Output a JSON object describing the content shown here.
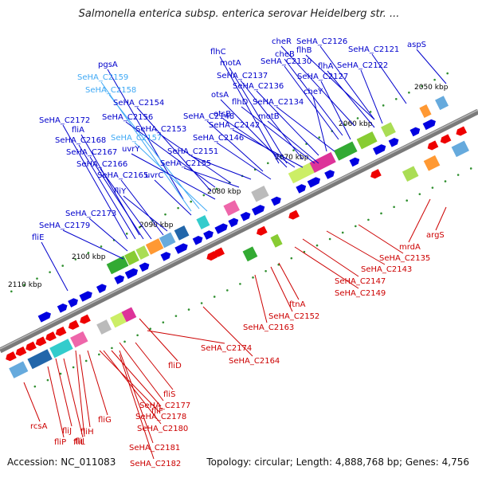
{
  "title": "Salmonella enterica subsp. enterica serovar Heidelberg str. ...",
  "footer": {
    "accession": "Accession: NC_011083",
    "stats": "Topology: circular; Length: 4,888,768 bp; Genes: 4,756"
  },
  "colors": {
    "forward_label": "#0000cc",
    "highlight_label": "#3fa9f5",
    "reverse_label": "#cc0000",
    "backbone": "#7a7a7a",
    "forward_gene": "#0000e0",
    "reverse_gene": "#ee0000",
    "rna": "#2f8f2f"
  },
  "ticks": [
    "2050 kbp",
    "2060 kbp",
    "2070 kbp",
    "2080 kbp",
    "2090 kbp",
    "2100 kbp",
    "2110 kbp"
  ],
  "labels_forward": [
    "flhB",
    "cheR",
    "SeHA_C2126",
    "SeHA_C2121",
    "aspS",
    "cheB",
    "SeHA_C2130",
    "flhA",
    "SeHA_C2122",
    "flhC",
    "motA",
    "pgsA",
    "SeHA_C2127",
    "SeHA_C2159",
    "SeHA_C2137",
    "SeHA_C2158",
    "SeHA_C2136",
    "cheY",
    "otsA",
    "SeHA_C2154",
    "flhD",
    "SeHA_C2134",
    "SeHA_C2156",
    "SeHA_C2148",
    "otsB",
    "motB",
    "SeHA_C2172",
    "SeHA_C2153",
    "SeHA_C2142",
    "fliA",
    "SeHA_C2157",
    "SeHA_C2146",
    "SeHA_C2168",
    "uvrY",
    "SeHA_C2167",
    "SeHA_C2151",
    "SeHA_C2166",
    "SeHA_C2155",
    "SeHA_C2165",
    "uvrC",
    "fliY",
    "SeHA_C2173",
    "SeHA_C2179",
    "fliE"
  ],
  "labels_reverse": [
    "argS",
    "mrdA",
    "SeHA_C2135",
    "SeHA_C2143",
    "SeHA_C2147",
    "SeHA_C2149",
    "ftnA",
    "SeHA_C2152",
    "SeHA_C2163",
    "SeHA_C2174",
    "SeHA_C2164",
    "fliD",
    "fliS",
    "SeHA_C2177",
    "fliF",
    "SeHA_C2178",
    "fliG",
    "SeHA_C2180",
    "fliH",
    "rcsA",
    "fliJ",
    "fliI",
    "SeHA_C2181",
    "fliP",
    "fliL",
    "SeHA_C2182"
  ]
}
